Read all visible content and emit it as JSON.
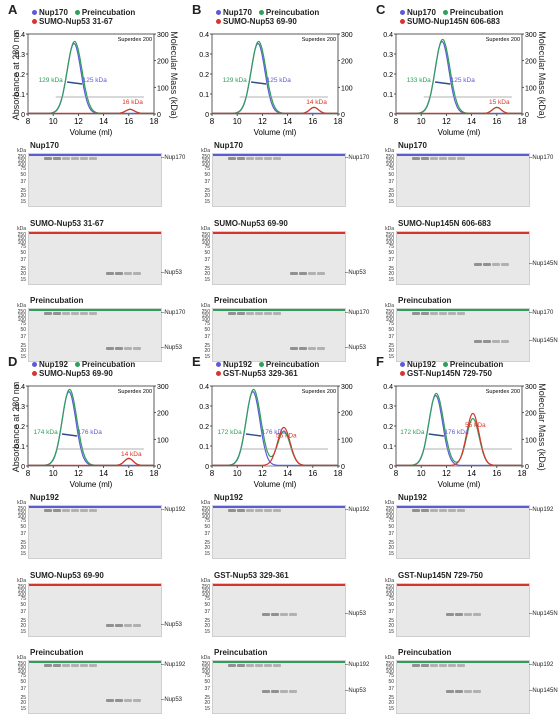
{
  "chart_data": [
    {
      "type": "line",
      "ylabel": "Absorbance at 280 nm",
      "y2label": "Molecular Mass (kDa)",
      "xlabel": "Volume (ml)",
      "column": "Superdex 200",
      "xlim": [
        8,
        18
      ],
      "ylim": [
        0,
        0.4
      ],
      "y2lim": [
        0,
        300
      ],
      "series": [
        {
          "name": "Nup170",
          "color": "#5b5bd6"
        },
        {
          "name": "Preincubation",
          "color": "#2e9e5b"
        },
        {
          "name": "SUMO-Nup53 31-67",
          "color": "#d8352a"
        }
      ],
      "mass_labels": [
        {
          "text": "129 kDa",
          "color": "#2e9e5b"
        },
        {
          "text": "125 kDa",
          "color": "#5b5bd6"
        },
        {
          "text": "16 kDa",
          "color": "#d8352a"
        }
      ]
    },
    {
      "type": "line",
      "ylabel": "",
      "y2label": "",
      "xlabel": "Volume (ml)",
      "column": "Superdex 200",
      "xlim": [
        8,
        18
      ],
      "ylim": [
        0,
        0.4
      ],
      "y2lim": [
        0,
        300
      ],
      "series": [
        {
          "name": "Nup170",
          "color": "#5b5bd6"
        },
        {
          "name": "Preincubation",
          "color": "#2e9e5b"
        },
        {
          "name": "SUMO-Nup53 69-90",
          "color": "#d8352a"
        }
      ],
      "mass_labels": [
        {
          "text": "129 kDa",
          "color": "#2e9e5b"
        },
        {
          "text": "125 kDa",
          "color": "#5b5bd6"
        },
        {
          "text": "14 kDa",
          "color": "#d8352a"
        }
      ]
    },
    {
      "type": "line",
      "ylabel": "",
      "y2label": "Molecular Mass (kDa)",
      "xlabel": "Volume (ml)",
      "column": "Superdex 200",
      "xlim": [
        8,
        18
      ],
      "ylim": [
        0,
        0.4
      ],
      "y2lim": [
        0,
        300
      ],
      "series": [
        {
          "name": "Nup170",
          "color": "#5b5bd6"
        },
        {
          "name": "Preincubation",
          "color": "#2e9e5b"
        },
        {
          "name": "SUMO-Nup145N 606-683",
          "color": "#d8352a"
        }
      ],
      "mass_labels": [
        {
          "text": "133 kDa",
          "color": "#2e9e5b"
        },
        {
          "text": "125 kDa",
          "color": "#5b5bd6"
        },
        {
          "text": "15 kDa",
          "color": "#d8352a"
        }
      ]
    },
    {
      "type": "line",
      "ylabel": "Absorbance at 280 nm",
      "y2label": "",
      "xlabel": "Volume (ml)",
      "column": "Superdex 200",
      "xlim": [
        8,
        18
      ],
      "ylim": [
        0,
        0.4
      ],
      "y2lim": [
        0,
        300
      ],
      "series": [
        {
          "name": "Nup192",
          "color": "#5b5bd6"
        },
        {
          "name": "Preincubation",
          "color": "#2e9e5b"
        },
        {
          "name": "SUMO-Nup53 69-90",
          "color": "#d8352a"
        }
      ],
      "mass_labels": [
        {
          "text": "174 kDa",
          "color": "#2e9e5b"
        },
        {
          "text": "176 kDa",
          "color": "#5b5bd6"
        },
        {
          "text": "14 kDa",
          "color": "#d8352a"
        }
      ]
    },
    {
      "type": "line",
      "ylabel": "",
      "y2label": "",
      "xlabel": "Volume (ml)",
      "column": "Superdex 200",
      "xlim": [
        8,
        18
      ],
      "ylim": [
        0,
        0.4
      ],
      "y2lim": [
        0,
        300
      ],
      "series": [
        {
          "name": "Nup192",
          "color": "#5b5bd6"
        },
        {
          "name": "Preincubation",
          "color": "#2e9e5b"
        },
        {
          "name": "GST-Nup53 329-361",
          "color": "#d8352a"
        }
      ],
      "mass_labels": [
        {
          "text": "172 kDa",
          "color": "#2e9e5b"
        },
        {
          "text": "176 kDa",
          "color": "#5b5bd6"
        },
        {
          "text": "55 kDa",
          "color": "#d8352a"
        }
      ]
    },
    {
      "type": "line",
      "ylabel": "",
      "y2label": "Molecular Mass (kDa)",
      "xlabel": "Volume (ml)",
      "column": "Superdex 200",
      "xlim": [
        8,
        18
      ],
      "ylim": [
        0,
        0.4
      ],
      "y2lim": [
        0,
        300
      ],
      "series": [
        {
          "name": "Nup192",
          "color": "#5b5bd6"
        },
        {
          "name": "Preincubation",
          "color": "#2e9e5b"
        },
        {
          "name": "GST-Nup145N 729-750",
          "color": "#d8352a"
        }
      ],
      "mass_labels": [
        {
          "text": "172 kDa",
          "color": "#2e9e5b"
        },
        {
          "text": "176 kDa",
          "color": "#5b5bd6"
        },
        {
          "text": "55 kDa",
          "color": "#d8352a"
        }
      ]
    }
  ],
  "panels": [
    {
      "letter": "A",
      "gels": [
        {
          "title": "Nup170",
          "color": "#5b5bd6",
          "bands": [
            "Nup170"
          ]
        },
        {
          "title": "SUMO-Nup53 31-67",
          "color": "#d8352a",
          "bands": [
            "Nup53"
          ]
        },
        {
          "title": "Preincubation",
          "color": "#2e9e5b",
          "bands": [
            "Nup170",
            "Nup53"
          ]
        }
      ]
    },
    {
      "letter": "B",
      "gels": [
        {
          "title": "Nup170",
          "color": "#5b5bd6",
          "bands": [
            "Nup170"
          ]
        },
        {
          "title": "SUMO-Nup53 69-90",
          "color": "#d8352a",
          "bands": [
            "Nup53"
          ]
        },
        {
          "title": "Preincubation",
          "color": "#2e9e5b",
          "bands": [
            "Nup170",
            "Nup53"
          ]
        }
      ]
    },
    {
      "letter": "C",
      "gels": [
        {
          "title": "Nup170",
          "color": "#5b5bd6",
          "bands": [
            "Nup170"
          ]
        },
        {
          "title": "SUMO-Nup145N 606-683",
          "color": "#d8352a",
          "bands": [
            "Nup145N"
          ]
        },
        {
          "title": "Preincubation",
          "color": "#2e9e5b",
          "bands": [
            "Nup170",
            "Nup145N"
          ]
        }
      ]
    },
    {
      "letter": "D",
      "gels": [
        {
          "title": "Nup192",
          "color": "#5b5bd6",
          "bands": [
            "Nup192"
          ]
        },
        {
          "title": "SUMO-Nup53 69-90",
          "color": "#d8352a",
          "bands": [
            "Nup53"
          ]
        },
        {
          "title": "Preincubation",
          "color": "#2e9e5b",
          "bands": [
            "Nup192",
            "Nup53"
          ]
        }
      ]
    },
    {
      "letter": "E",
      "gels": [
        {
          "title": "Nup192",
          "color": "#5b5bd6",
          "bands": [
            "Nup192"
          ]
        },
        {
          "title": "GST-Nup53 329-361",
          "color": "#d8352a",
          "bands": [
            "Nup53"
          ]
        },
        {
          "title": "Preincubation",
          "color": "#2e9e5b",
          "bands": [
            "Nup192",
            "Nup53"
          ]
        }
      ]
    },
    {
      "letter": "F",
      "gels": [
        {
          "title": "Nup192",
          "color": "#5b5bd6",
          "bands": [
            "Nup192"
          ]
        },
        {
          "title": "GST-Nup145N 729-750",
          "color": "#d8352a",
          "bands": [
            "Nup145N"
          ]
        },
        {
          "title": "Preincubation",
          "color": "#2e9e5b",
          "bands": [
            "Nup192",
            "Nup145N"
          ]
        }
      ]
    }
  ],
  "kda_header": "kDa",
  "kda_markers": [
    "250",
    "150",
    "100",
    "75",
    "50",
    "37",
    "25",
    "20",
    "15"
  ],
  "x_ticks": [
    "8",
    "10",
    "12",
    "14",
    "16",
    "18"
  ],
  "y_ticks": [
    "0",
    "0.1",
    "0.2",
    "0.3",
    "0.4"
  ],
  "y2_ticks": [
    "0",
    "100",
    "200",
    "300"
  ]
}
